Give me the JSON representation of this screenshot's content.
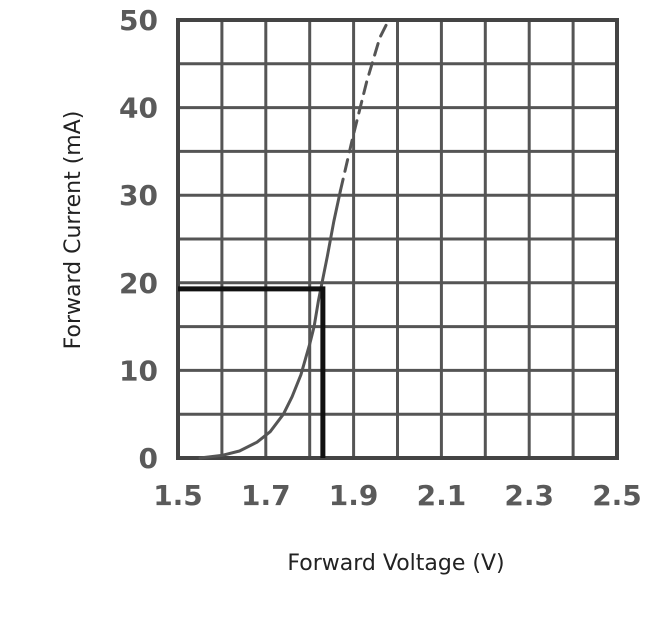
{
  "chart_data": {
    "type": "line",
    "title": "",
    "xlabel": "Forward Voltage (V)",
    "ylabel": "Forward Current (mA)",
    "xlim": [
      1.5,
      2.5
    ],
    "ylim": [
      0,
      50
    ],
    "x_tick_labels": [
      "1.5",
      "1.7",
      "1.9",
      "2.1",
      "2.3",
      "2.5"
    ],
    "x_tick_values": [
      1.5,
      1.7,
      1.9,
      2.1,
      2.3,
      2.5
    ],
    "y_tick_labels": [
      "0",
      "10",
      "20",
      "30",
      "40",
      "50"
    ],
    "y_tick_values": [
      0,
      10,
      20,
      30,
      40,
      50
    ],
    "grid": true,
    "grid_x_step": 0.1,
    "grid_y_step": 5,
    "series": [
      {
        "style": "solid",
        "color": "#555555",
        "x": [
          1.55,
          1.6,
          1.64,
          1.68,
          1.71,
          1.74,
          1.76,
          1.78,
          1.8,
          1.81,
          1.82,
          1.84,
          1.855,
          1.87
        ],
        "y": [
          0,
          0.3,
          0.8,
          1.8,
          3,
          5,
          7,
          9.5,
          13,
          15,
          18,
          23,
          27,
          30.5
        ]
      },
      {
        "style": "dashed",
        "color": "#555555",
        "x": [
          1.87,
          1.9,
          1.93,
          1.96,
          1.98
        ],
        "y": [
          30.5,
          37,
          43,
          48,
          50
        ]
      }
    ],
    "annotations": [
      {
        "type": "operating-point-marker",
        "color": "#111111",
        "x": 1.83,
        "y": 19.3
      }
    ]
  }
}
